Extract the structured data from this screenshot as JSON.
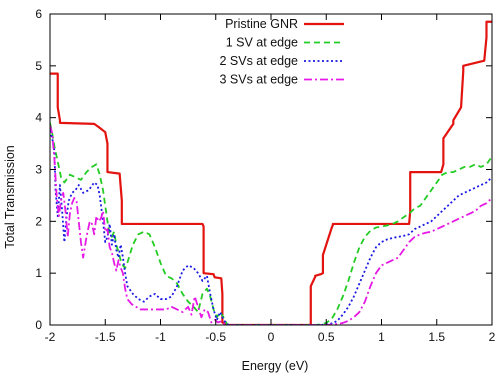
{
  "chart_data": {
    "type": "line",
    "xlabel": "Energy (eV)",
    "ylabel": "Total Transmission",
    "xlim": [
      -2,
      2
    ],
    "ylim": [
      0,
      6
    ],
    "xticks": [
      -2,
      -1.5,
      -1,
      -0.5,
      0,
      0.5,
      1,
      1.5,
      2
    ],
    "xtick_labels": [
      "-2",
      "-1.5",
      "-1",
      "-0.5",
      "0",
      "0.5",
      "1",
      "1.5",
      "2"
    ],
    "yticks": [
      0,
      1,
      2,
      3,
      4,
      5,
      6
    ],
    "ytick_labels": [
      "0",
      "1",
      "2",
      "3",
      "4",
      "5",
      "6"
    ],
    "grid": false,
    "legend_position": "top-right",
    "series": [
      {
        "name": "Pristine GNR",
        "color": "#e3130f",
        "dash": "solid",
        "x": [
          -2.0,
          -1.93,
          -1.93,
          -1.91,
          -1.91,
          -1.6,
          -1.56,
          -1.5,
          -1.48,
          -1.48,
          -1.37,
          -1.35,
          -1.35,
          -0.62,
          -0.61,
          -0.61,
          -0.52,
          -0.51,
          -0.45,
          -0.44,
          -0.44,
          -0.4,
          -0.4,
          0.36,
          0.36,
          0.4,
          0.4,
          0.45,
          0.47,
          0.47,
          0.55,
          0.56,
          0.56,
          1.25,
          1.26,
          1.26,
          1.54,
          1.56,
          1.56,
          1.63,
          1.65,
          1.65,
          1.72,
          1.74,
          1.74,
          1.93,
          1.95,
          1.95,
          2.0
        ],
        "y": [
          4.85,
          4.85,
          4.2,
          3.95,
          3.9,
          3.88,
          3.82,
          3.72,
          3.5,
          2.95,
          2.92,
          2.4,
          1.95,
          1.95,
          1.9,
          1.0,
          0.98,
          0.92,
          0.9,
          0.6,
          0.05,
          0.0,
          0.0,
          0.0,
          0.75,
          0.93,
          0.95,
          0.98,
          1.0,
          1.35,
          1.88,
          1.93,
          1.95,
          1.95,
          2.2,
          2.95,
          2.95,
          3.1,
          3.6,
          3.82,
          3.88,
          3.95,
          4.2,
          4.9,
          5.0,
          5.1,
          5.55,
          5.85,
          5.85
        ]
      },
      {
        "name": "1 SV at edge",
        "color": "#22cc22",
        "dash": "dashed",
        "x": [
          -2.0,
          -1.98,
          -1.96,
          -1.93,
          -1.9,
          -1.87,
          -1.82,
          -1.77,
          -1.72,
          -1.67,
          -1.62,
          -1.58,
          -1.55,
          -1.52,
          -1.5,
          -1.48,
          -1.46,
          -1.44,
          -1.42,
          -1.4,
          -1.38,
          -1.36,
          -1.34,
          -1.32,
          -1.3,
          -1.25,
          -1.2,
          -1.15,
          -1.1,
          -1.05,
          -1.0,
          -0.95,
          -0.9,
          -0.85,
          -0.8,
          -0.75,
          -0.7,
          -0.66,
          -0.62,
          -0.58,
          -0.55,
          -0.52,
          -0.49,
          -0.46,
          -0.43,
          -0.41,
          -0.4,
          -0.38,
          0.4,
          0.45,
          0.5,
          0.55,
          0.6,
          0.65,
          0.7,
          0.75,
          0.8,
          0.85,
          0.9,
          0.95,
          1.0,
          1.05,
          1.1,
          1.15,
          1.2,
          1.25,
          1.3,
          1.35,
          1.4,
          1.45,
          1.5,
          1.55,
          1.6,
          1.65,
          1.7,
          1.75,
          1.8,
          1.85,
          1.9,
          1.95,
          2.0
        ],
        "y": [
          3.9,
          3.7,
          3.45,
          3.15,
          2.85,
          2.75,
          2.9,
          2.85,
          2.8,
          2.95,
          3.05,
          3.1,
          2.9,
          2.6,
          2.3,
          2.0,
          1.75,
          1.7,
          1.8,
          1.55,
          1.4,
          1.25,
          1.15,
          1.1,
          1.2,
          1.55,
          1.75,
          1.8,
          1.75,
          1.5,
          1.2,
          0.95,
          0.9,
          0.8,
          0.6,
          0.45,
          0.35,
          0.25,
          0.6,
          0.7,
          0.55,
          0.3,
          0.15,
          0.25,
          0.15,
          0.08,
          0.02,
          0.0,
          0.0,
          0.01,
          0.04,
          0.12,
          0.3,
          0.55,
          0.85,
          1.2,
          1.5,
          1.7,
          1.82,
          1.88,
          1.9,
          1.92,
          1.95,
          2.0,
          2.08,
          2.15,
          2.25,
          2.3,
          2.45,
          2.6,
          2.75,
          2.9,
          2.95,
          2.95,
          3.0,
          3.05,
          3.05,
          3.1,
          3.05,
          3.1,
          3.25
        ]
      },
      {
        "name": "2 SVs at edge",
        "color": "#1a1ae6",
        "dash": "dotted",
        "x": [
          -2.0,
          -1.98,
          -1.96,
          -1.95,
          -1.93,
          -1.91,
          -1.89,
          -1.87,
          -1.85,
          -1.83,
          -1.8,
          -1.77,
          -1.74,
          -1.7,
          -1.65,
          -1.6,
          -1.57,
          -1.55,
          -1.52,
          -1.5,
          -1.48,
          -1.46,
          -1.44,
          -1.42,
          -1.4,
          -1.38,
          -1.36,
          -1.34,
          -1.32,
          -1.3,
          -1.25,
          -1.2,
          -1.15,
          -1.1,
          -1.05,
          -1.0,
          -0.95,
          -0.9,
          -0.85,
          -0.8,
          -0.75,
          -0.7,
          -0.66,
          -0.62,
          -0.58,
          -0.55,
          -0.52,
          -0.49,
          -0.46,
          -0.43,
          -0.41,
          -0.4,
          -0.38,
          0.4,
          0.45,
          0.5,
          0.55,
          0.6,
          0.65,
          0.7,
          0.75,
          0.8,
          0.85,
          0.9,
          0.95,
          1.0,
          1.05,
          1.1,
          1.15,
          1.2,
          1.25,
          1.3,
          1.35,
          1.4,
          1.45,
          1.5,
          1.55,
          1.6,
          1.65,
          1.7,
          1.75,
          1.8,
          1.85,
          1.9,
          1.95,
          2.0
        ],
        "y": [
          3.75,
          3.6,
          3.35,
          2.6,
          2.1,
          2.7,
          2.2,
          1.6,
          2.1,
          2.4,
          2.55,
          2.6,
          2.7,
          2.55,
          2.6,
          2.75,
          2.7,
          2.5,
          2.0,
          1.6,
          1.7,
          1.95,
          1.55,
          1.75,
          1.45,
          1.3,
          1.55,
          1.3,
          1.0,
          0.75,
          0.6,
          0.5,
          0.45,
          0.55,
          0.6,
          0.5,
          0.5,
          0.55,
          0.75,
          1.05,
          1.15,
          1.1,
          1.0,
          0.85,
          0.95,
          0.6,
          0.3,
          0.1,
          0.25,
          0.1,
          0.05,
          0.02,
          0.0,
          0.0,
          0.0,
          0.01,
          0.03,
          0.08,
          0.2,
          0.35,
          0.55,
          0.8,
          1.05,
          1.3,
          1.5,
          1.6,
          1.65,
          1.68,
          1.7,
          1.72,
          1.75,
          1.85,
          1.9,
          1.95,
          2.0,
          2.1,
          2.2,
          2.3,
          2.4,
          2.5,
          2.55,
          2.6,
          2.65,
          2.7,
          2.75,
          2.85
        ]
      },
      {
        "name": "3 SVs at edge",
        "color": "#e619e6",
        "dash": "dashdot",
        "x": [
          -2.0,
          -1.98,
          -1.96,
          -1.94,
          -1.92,
          -1.9,
          -1.88,
          -1.86,
          -1.84,
          -1.82,
          -1.8,
          -1.78,
          -1.76,
          -1.74,
          -1.72,
          -1.7,
          -1.67,
          -1.64,
          -1.62,
          -1.6,
          -1.58,
          -1.56,
          -1.54,
          -1.52,
          -1.5,
          -1.48,
          -1.46,
          -1.44,
          -1.42,
          -1.4,
          -1.38,
          -1.36,
          -1.34,
          -1.32,
          -1.3,
          -1.26,
          -1.22,
          -1.18,
          -1.14,
          -1.1,
          -1.05,
          -1.0,
          -0.95,
          -0.9,
          -0.85,
          -0.8,
          -0.75,
          -0.72,
          -0.69,
          -0.66,
          -0.63,
          -0.6,
          -0.57,
          -0.54,
          -0.51,
          -0.48,
          -0.45,
          -0.43,
          -0.41,
          -0.39,
          0.45,
          0.5,
          0.55,
          0.6,
          0.65,
          0.7,
          0.75,
          0.8,
          0.85,
          0.9,
          0.95,
          1.0,
          1.05,
          1.1,
          1.15,
          1.2,
          1.25,
          1.3,
          1.35,
          1.4,
          1.45,
          1.5,
          1.55,
          1.6,
          1.65,
          1.7,
          1.75,
          1.8,
          1.85,
          1.9,
          1.95,
          2.0
        ],
        "y": [
          3.85,
          3.7,
          3.2,
          2.5,
          2.1,
          2.4,
          2.55,
          2.2,
          1.7,
          2.15,
          2.35,
          2.45,
          2.4,
          2.0,
          1.6,
          1.3,
          1.7,
          2.0,
          1.95,
          1.75,
          2.1,
          2.0,
          2.05,
          2.2,
          1.8,
          1.85,
          1.5,
          1.4,
          1.2,
          1.05,
          1.25,
          1.1,
          1.0,
          0.7,
          0.5,
          0.4,
          0.35,
          0.3,
          0.3,
          0.3,
          0.3,
          0.3,
          0.3,
          0.35,
          0.3,
          0.25,
          0.35,
          0.2,
          0.55,
          0.35,
          0.15,
          0.3,
          0.25,
          0.05,
          0.1,
          0.05,
          0.07,
          0.03,
          0.01,
          0.0,
          0.0,
          0.0,
          0.01,
          0.02,
          0.04,
          0.08,
          0.15,
          0.25,
          0.45,
          0.75,
          1.0,
          1.15,
          1.2,
          1.25,
          1.3,
          1.45,
          1.6,
          1.7,
          1.75,
          1.78,
          1.8,
          1.85,
          1.9,
          1.95,
          2.0,
          2.05,
          2.1,
          2.15,
          2.2,
          2.3,
          2.35,
          2.45
        ]
      }
    ]
  }
}
